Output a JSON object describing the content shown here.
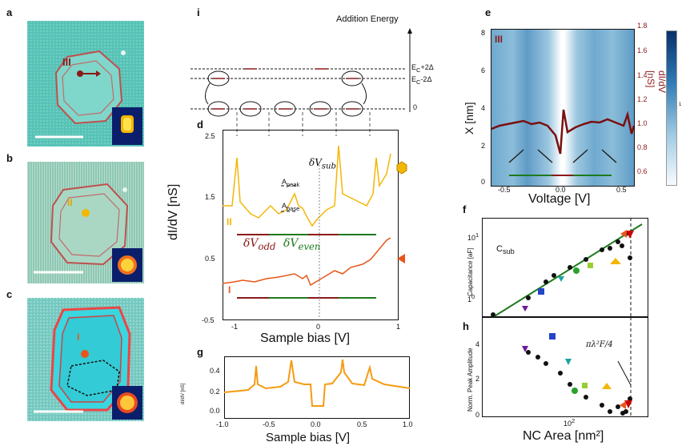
{
  "panels": {
    "a": {
      "label": "a",
      "marker": "III"
    },
    "b": {
      "label": "b",
      "marker": "II"
    },
    "c": {
      "label": "c",
      "marker": "I"
    },
    "d": {
      "label": "d"
    },
    "e": {
      "label": "e"
    },
    "f": {
      "label": "f"
    },
    "g": {
      "label": "g"
    },
    "h": {
      "label": "h"
    },
    "i": {
      "label": "i"
    }
  },
  "panel_i": {
    "title": "Addition Energy",
    "level_top": "E",
    "level_top_sub": "C",
    "level_top_suffix": "+2Δ",
    "level_mid": "E",
    "level_mid_sub": "C",
    "level_mid_suffix": "-2Δ",
    "level_zero": "0"
  },
  "panel_d": {
    "ylabel": "dI/dV [nS]",
    "xlabel": "Sample bias [V]",
    "yticks": [
      "2.5",
      "1.5",
      "0.5",
      "-0.5"
    ],
    "xticks": [
      "-1",
      "0",
      "1"
    ],
    "curve_II": "II",
    "curve_I": "I",
    "a_peak": "A",
    "a_peak_sub": "peak",
    "a_base": "A",
    "a_base_sub": "base",
    "dv_sub": "δV",
    "dv_sub_sub": "sub",
    "dv_odd": "δV",
    "dv_odd_sub": "odd",
    "dv_even": "δV",
    "dv_even_sub": "even"
  },
  "panel_g": {
    "ylabel": "dI/dV [nS]",
    "xlabel": "Sample bias [V]",
    "yticks": [
      "0.4",
      "0.2",
      "0.0"
    ],
    "xticks": [
      "-1.0",
      "-0.5",
      "0.0",
      "0.5",
      "1.0"
    ]
  },
  "panel_e": {
    "marker": "III",
    "ylabel": "X [nm]",
    "xlabel": "Voltage [V]",
    "yticks": [
      "8",
      "6",
      "4",
      "2",
      "0"
    ],
    "xticks": [
      "-0.5",
      "0.0",
      "0.5"
    ],
    "y2label": "dI/dV [nS]",
    "y2ticks": [
      "1.8",
      "1.6",
      "1.4",
      "1.2",
      "1.0",
      "0.8",
      "0.6"
    ],
    "colorbar_tick": "1"
  },
  "panel_f": {
    "ylabel": "Capacitance [aF]",
    "annotation": "C",
    "annotation_sub": "sub",
    "yticks": [
      "10",
      "1",
      "0"
    ],
    "ytick_exps": [
      "1",
      "0",
      ""
    ]
  },
  "panel_h": {
    "ylabel": "Norm. Peak Amplitude",
    "xlabel": "NC Area [nm²]",
    "yticks": [
      "4",
      "2",
      "0"
    ],
    "xtick": "10",
    "xtick_exp": "2",
    "annotation": "πλ²F/4"
  },
  "colors": {
    "curve_II": "#f2b705",
    "curve_I": "#e8561b",
    "odd": "#8b1a1a",
    "even": "#1e7a1e",
    "fit_line": "#1f7a1f",
    "marker_red": "#8b1a1a"
  }
}
